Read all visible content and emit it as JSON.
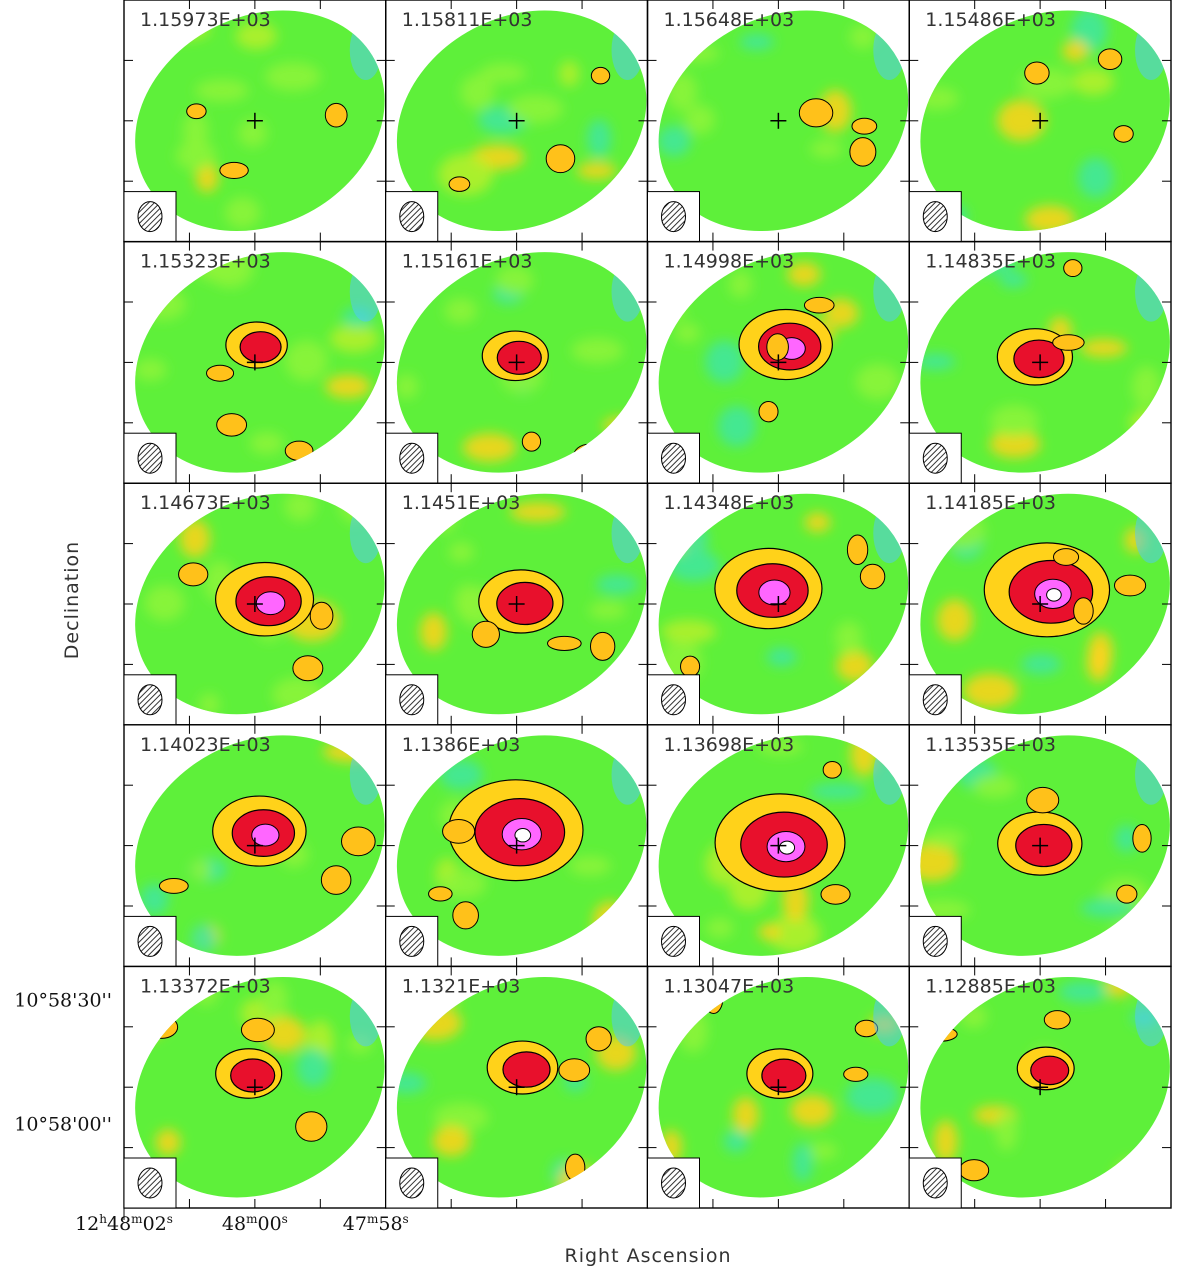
{
  "chart_data": {
    "type": "heatmap",
    "description_type": "channel-map",
    "xlabel": "Right Ascension",
    "ylabel": "Declination",
    "layout": {
      "rows": 5,
      "cols": 4
    },
    "panel_labels": [
      "1.15973E+03",
      "1.15811E+03",
      "1.15648E+03",
      "1.15486E+03",
      "1.15323E+03",
      "1.15161E+03",
      "1.14998E+03",
      "1.14835E+03",
      "1.14673E+03",
      "1.1451E+03",
      "1.14348E+03",
      "1.14185E+03",
      "1.14023E+03",
      "1.1386E+03",
      "1.13698E+03",
      "1.13535E+03",
      "1.13372E+03",
      "1.1321E+03",
      "1.13047E+03",
      "1.12885E+03"
    ],
    "x_ticks": [
      {
        "base": "12",
        "sup1": "h",
        "mid": "48",
        "sup2": "m",
        "sec": "02",
        "sup3": "s"
      },
      {
        "base": "",
        "sup1": "",
        "mid": "48",
        "sup2": "m",
        "sec": "00",
        "sup3": "s"
      },
      {
        "base": "",
        "sup1": "",
        "mid": "47",
        "sup2": "m",
        "sec": "58",
        "sup3": "s"
      }
    ],
    "y_ticks": [
      "10°58'30''",
      "10°58'00''"
    ],
    "emission_peaks": [
      [
        0.0,
        0.0,
        0.0,
        0.0
      ],
      [
        0.2,
        0.25,
        0.55,
        0.35
      ],
      [
        0.6,
        0.45,
        0.7,
        0.9
      ],
      [
        0.55,
        1.0,
        0.95,
        0.45
      ],
      [
        0.25,
        0.3,
        0.25,
        0.15
      ]
    ],
    "colors": {
      "background_low": "#2f7cff",
      "mid": "#5ef03a",
      "high": "#ffd21a",
      "peak": "#e8102c",
      "max": "#ff66ff"
    },
    "beam": "hatched-ellipse-icon",
    "center_marker": "cross-icon"
  }
}
